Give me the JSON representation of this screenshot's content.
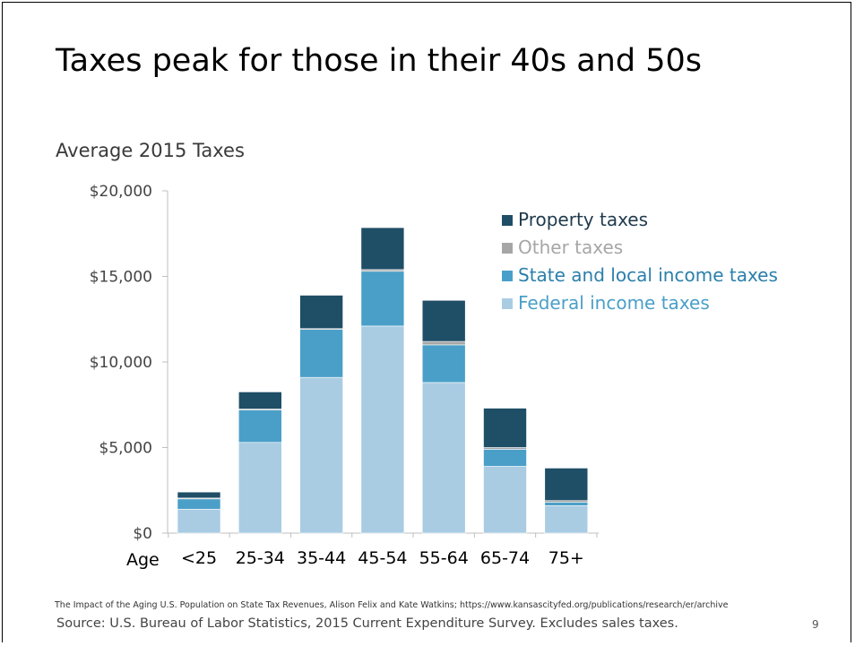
{
  "slide": {
    "title": "Taxes peak for those in their 40s and 50s",
    "citation": "The Impact of the Aging U.S. Population on State Tax Revenues,  Alison Felix and Kate Watkins;  https://www.kansascityfed.org/publications/research/er/archive",
    "source": "Source: U.S. Bureau of Labor Statistics, 2015 Current Expenditure Survey.  Excludes sales taxes.",
    "page_number": "9"
  },
  "chart_data": {
    "type": "bar",
    "stacked": true,
    "title": "Average 2015 Taxes",
    "xlabel": "Age",
    "ylabel": "",
    "categories": [
      "<25",
      "25-34",
      "35-44",
      "45-54",
      "55-64",
      "65-74",
      "75+"
    ],
    "ylim": [
      0,
      20000
    ],
    "yticks": [
      0,
      5000,
      10000,
      15000,
      20000
    ],
    "ytick_labels": [
      "$0",
      "$5,000",
      "$10,000",
      "$15,000",
      "$20,000"
    ],
    "grid": false,
    "legend_position": "top-right",
    "series": [
      {
        "name": "Federal income taxes",
        "color": "#a9cce3",
        "values": [
          1400,
          5300,
          9100,
          12100,
          8800,
          3900,
          1600
        ]
      },
      {
        "name": "State and local income taxes",
        "color": "#4a9fc8",
        "values": [
          600,
          1900,
          2800,
          3200,
          2200,
          1000,
          200
        ]
      },
      {
        "name": "Other taxes",
        "color": "#a6a6a6",
        "values": [
          50,
          50,
          50,
          100,
          200,
          100,
          100
        ]
      },
      {
        "name": "Property taxes",
        "color": "#1f4e67",
        "values": [
          350,
          1000,
          1950,
          2450,
          2400,
          2300,
          1900
        ]
      }
    ],
    "legend_order": [
      "Property taxes",
      "Other taxes",
      "State and local income taxes",
      "Federal income taxes"
    ],
    "legend_text_colors": {
      "Property taxes": "#1f3a4d",
      "Other taxes": "#a6a6a6",
      "State and local income taxes": "#2b7fab",
      "Federal income taxes": "#4a9fc8"
    }
  }
}
